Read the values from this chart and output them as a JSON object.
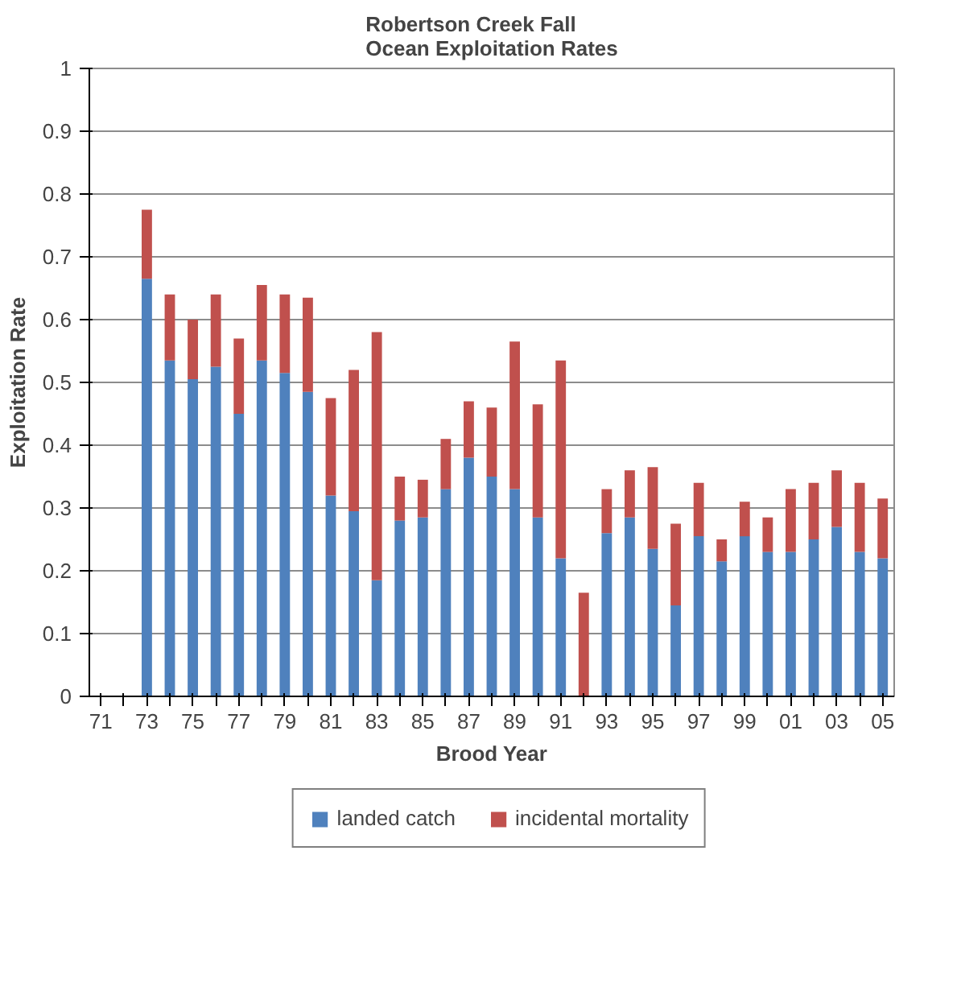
{
  "chart_data": {
    "type": "bar",
    "stacked": true,
    "title": "Robertson Creek Fall\nOcean Exploitation Rates",
    "xlabel": "Brood Year",
    "ylabel": "Exploitation Rate",
    "categories": [
      "71",
      null,
      "73",
      null,
      "75",
      null,
      "77",
      null,
      "79",
      null,
      "81",
      null,
      "83",
      null,
      "85",
      null,
      "87",
      null,
      "89",
      null,
      "91",
      null,
      "93",
      null,
      "95",
      null,
      "97",
      null,
      "99",
      null,
      "01",
      null,
      "03",
      null,
      "05"
    ],
    "series": [
      {
        "name": "landed catch",
        "color": "#4f81bd",
        "values": [
          null,
          null,
          0.665,
          0.535,
          0.505,
          0.525,
          0.45,
          0.535,
          0.515,
          0.485,
          0.32,
          0.295,
          0.185,
          0.28,
          0.285,
          0.33,
          0.38,
          0.35,
          0.33,
          0.285,
          0.22,
          0,
          0.26,
          0.285,
          0.235,
          0.145,
          0.255,
          0.215,
          0.255,
          0.23,
          0.23,
          0.25,
          0.27,
          0.23,
          0.22
        ]
      },
      {
        "name": "incidental mortality",
        "color": "#c0504d",
        "values": [
          null,
          null,
          0.11,
          0.105,
          0.095,
          0.115,
          0.12,
          0.12,
          0.125,
          0.15,
          0.155,
          0.225,
          0.395,
          0.07,
          0.06,
          0.08,
          0.09,
          0.11,
          0.235,
          0.18,
          0.315,
          0.165,
          0.07,
          0.075,
          0.13,
          0.13,
          0.085,
          0.035,
          0.055,
          0.055,
          0.1,
          0.09,
          0.09,
          0.11,
          0.095
        ]
      }
    ],
    "ylim": [
      0,
      1
    ],
    "yticks": [
      0,
      0.1,
      0.2,
      0.3,
      0.4,
      0.5,
      0.6,
      0.7,
      0.8,
      0.9,
      1
    ],
    "grid": "y",
    "legend": "bottom"
  }
}
